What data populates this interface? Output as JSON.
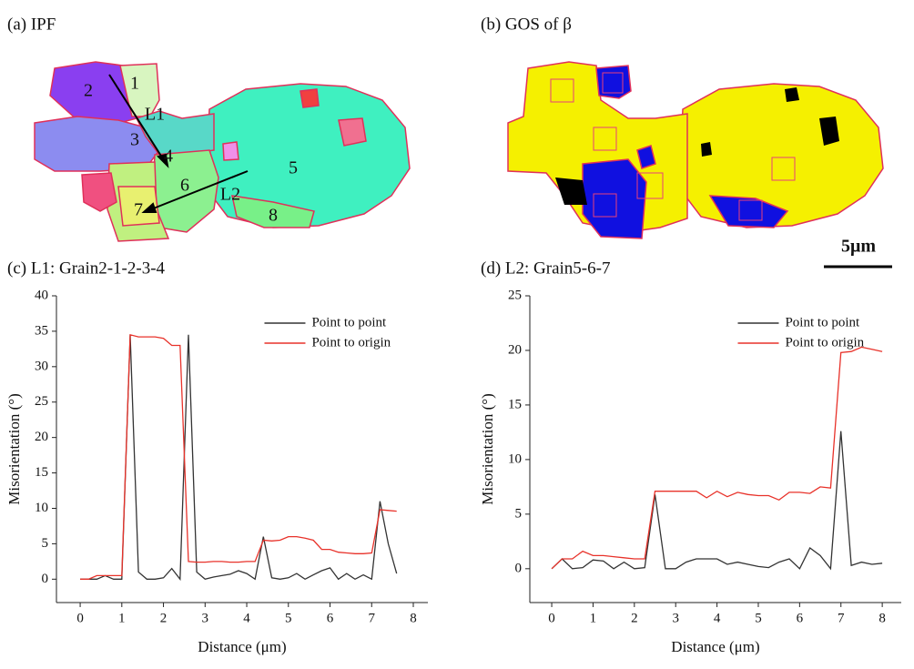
{
  "chart_data": [
    {
      "type": "line",
      "title": "(c) L1: Grain2-1-2-3-4",
      "x_label": "Distance (μm)",
      "y_label": "Misorientation (°)",
      "x": [
        0,
        0.2,
        0.4,
        0.6,
        0.8,
        1.0,
        1.2,
        1.4,
        1.6,
        1.8,
        2.0,
        2.2,
        2.4,
        2.6,
        2.8,
        3.0,
        3.2,
        3.4,
        3.6,
        3.8,
        4.0,
        4.2,
        4.4,
        4.6,
        4.8,
        5.0,
        5.2,
        5.4,
        5.6,
        5.8,
        6.0,
        6.2,
        6.4,
        6.6,
        6.8,
        7.0,
        7.2,
        7.4,
        7.6
      ],
      "xlim": [
        -0.57,
        8.35
      ],
      "xticks": [
        0,
        1,
        2,
        3,
        4,
        5,
        6,
        7,
        8
      ],
      "ylim": [
        -3.3,
        40
      ],
      "yticks": [
        0,
        5,
        10,
        15,
        20,
        25,
        30,
        35,
        40
      ],
      "legend": "top-right",
      "series": [
        {
          "name": "Point to point",
          "color": "#333333",
          "values": [
            0,
            0,
            0,
            0.5,
            0,
            0,
            34.5,
            1,
            0,
            0,
            0.2,
            1.5,
            0,
            34.5,
            1,
            0,
            0.3,
            0.5,
            0.7,
            1.2,
            0.8,
            0,
            6,
            0.2,
            0,
            0.2,
            0.8,
            0,
            0.6,
            1.2,
            1.6,
            0,
            0.8,
            0,
            0.6,
            0,
            11,
            5,
            0.8
          ]
        },
        {
          "name": "Point to origin",
          "color": "#e8322a",
          "values": [
            0,
            0,
            0.5,
            0.5,
            0.5,
            0.5,
            34.5,
            34.2,
            34.2,
            34.2,
            34.0,
            33.0,
            33.0,
            2.5,
            2.4,
            2.4,
            2.5,
            2.5,
            2.4,
            2.4,
            2.5,
            2.5,
            5.5,
            5.4,
            5.5,
            6.0,
            6.0,
            5.8,
            5.5,
            4.2,
            4.2,
            3.8,
            3.7,
            3.6,
            3.6,
            3.7,
            9.8,
            9.7,
            9.6
          ]
        }
      ]
    },
    {
      "type": "line",
      "title": "(d) L2: Grain5-6-7",
      "x_label": "Distance (μm)",
      "y_label": "Misorientation (°)",
      "x": [
        0,
        0.25,
        0.5,
        0.75,
        1.0,
        1.25,
        1.5,
        1.75,
        2.0,
        2.25,
        2.5,
        2.75,
        3.0,
        3.25,
        3.5,
        3.75,
        4.0,
        4.25,
        4.5,
        4.75,
        5.0,
        5.25,
        5.5,
        5.75,
        6.0,
        6.25,
        6.5,
        6.75,
        7.0,
        7.25,
        7.5,
        7.75,
        8.0
      ],
      "xlim": [
        -0.53,
        8.46
      ],
      "xticks": [
        0,
        1,
        2,
        3,
        4,
        5,
        6,
        7,
        8
      ],
      "ylim": [
        -3.1,
        25
      ],
      "yticks": [
        0,
        5,
        10,
        15,
        20,
        25
      ],
      "legend": "top-right",
      "series": [
        {
          "name": "Point to point",
          "color": "#333333",
          "values": [
            0,
            0.9,
            0,
            0.1,
            0.8,
            0.7,
            0,
            0.6,
            0,
            0.1,
            6.8,
            0,
            0,
            0.6,
            0.9,
            0.9,
            0.9,
            0.4,
            0.6,
            0.4,
            0.2,
            0.1,
            0.6,
            0.9,
            0,
            1.9,
            1.2,
            0,
            12.6,
            0.3,
            0.6,
            0.4,
            0.5
          ]
        },
        {
          "name": "Point to origin",
          "color": "#e8322a",
          "values": [
            0,
            0.9,
            0.9,
            1.6,
            1.2,
            1.2,
            1.1,
            1.0,
            0.9,
            0.9,
            7.1,
            7.1,
            7.1,
            7.1,
            7.1,
            6.5,
            7.1,
            6.6,
            7.0,
            6.8,
            6.7,
            6.7,
            6.3,
            7.0,
            7.0,
            6.9,
            7.5,
            7.4,
            19.8,
            19.9,
            20.3,
            20.1,
            19.9
          ]
        }
      ]
    }
  ],
  "images": [
    {
      "title": "(a) IPF",
      "labels": [
        "1",
        "2",
        "3",
        "4",
        "5",
        "6",
        "7",
        "8",
        "L1",
        "L2"
      ]
    },
    {
      "title": "(b) GOS of β",
      "scale_bar": "5μm"
    }
  ]
}
